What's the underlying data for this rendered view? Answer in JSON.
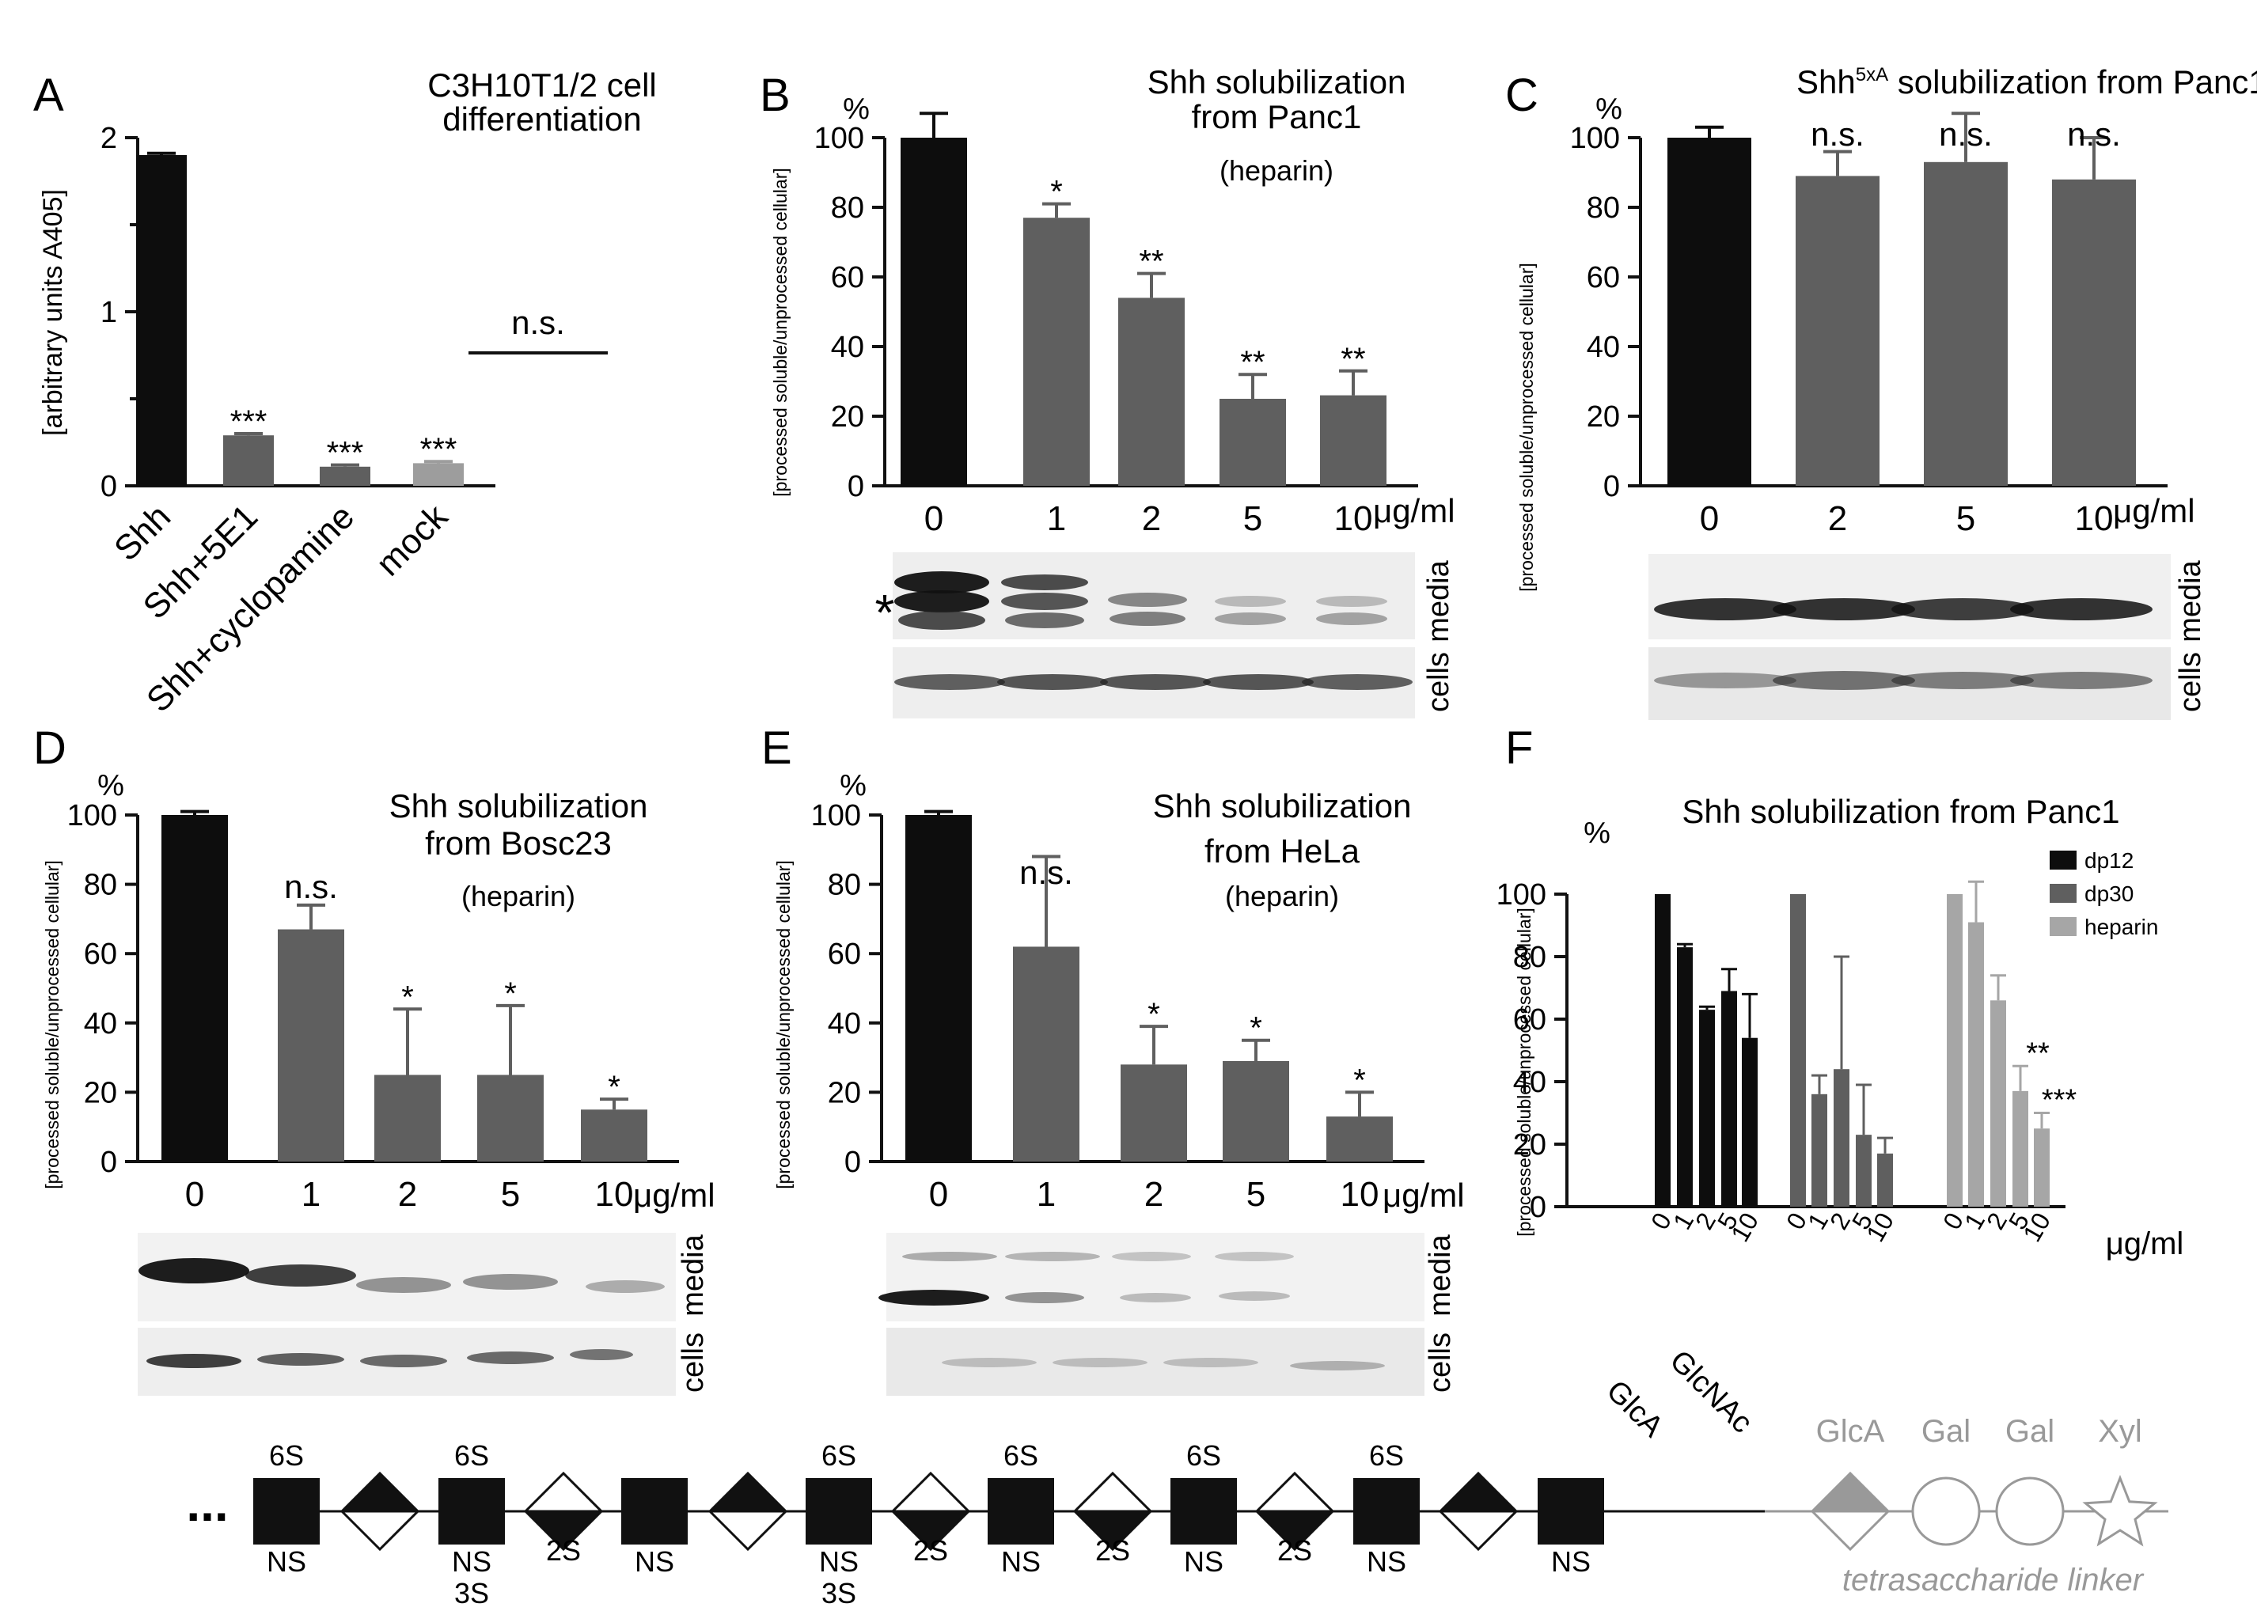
{
  "chart_data": [
    {
      "panel": "A",
      "type": "bar",
      "title_lines": [
        "C3H10T1/2 cell",
        "differentiation"
      ],
      "ylabel": "[arbitrary units A405]",
      "ylim": [
        0,
        2
      ],
      "yticks": [
        "0",
        "1",
        "2"
      ],
      "categories": [
        "Shh",
        "Shh+5E1",
        "Shh+cyclopamine",
        "mock"
      ],
      "values": [
        1.9,
        0.29,
        0.11,
        0.13
      ],
      "errors": [
        0.01,
        0.01,
        0.01,
        0.01
      ],
      "colors": [
        "#0d0d0d",
        "#5f5f5f",
        "#5f5f5f",
        "#9d9d9d"
      ],
      "sig": [
        "",
        "***",
        "***",
        "***"
      ],
      "bracket_label": "n.s."
    },
    {
      "panel": "B",
      "type": "bar",
      "title_lines": [
        "Shh solubilization",
        "from Panc1"
      ],
      "subtitle": "(heparin)",
      "unit": "%",
      "ylabel": "[processed soluble/unprocessed cellular]",
      "ylim": [
        0,
        100
      ],
      "yticks": [
        "0",
        "20",
        "40",
        "60",
        "80",
        "100"
      ],
      "categories": [
        "0",
        "1",
        "2",
        "5",
        "10"
      ],
      "x_unit": "μg/ml",
      "values": [
        100,
        77,
        54,
        25,
        26
      ],
      "errors": [
        7,
        4,
        7,
        7,
        7
      ],
      "colors": [
        "#0d0d0d",
        "#5f5f5f",
        "#5f5f5f",
        "#5f5f5f",
        "#5f5f5f"
      ],
      "sig": [
        "",
        "*",
        "**",
        "**",
        "**"
      ],
      "blot_labels": [
        "media",
        "cells"
      ],
      "blot_marker": "*"
    },
    {
      "panel": "C",
      "type": "bar",
      "title": "Shh",
      "title_sup": "5xA",
      "title_rest": " solubilization from Panc1",
      "unit": "%",
      "ylabel": "[processed soluble/unprocessed cellular]",
      "ylim": [
        0,
        100
      ],
      "yticks": [
        "0",
        "20",
        "40",
        "60",
        "80",
        "100"
      ],
      "categories": [
        "0",
        "2",
        "5",
        "10"
      ],
      "x_unit": "μg/ml",
      "values": [
        100,
        89,
        93,
        88
      ],
      "errors": [
        3,
        7,
        14,
        12
      ],
      "colors": [
        "#0d0d0d",
        "#5f5f5f",
        "#5f5f5f",
        "#5f5f5f"
      ],
      "sig": [
        "",
        "n.s.",
        "n.s.",
        "n.s."
      ],
      "blot_labels": [
        "media",
        "cells"
      ]
    },
    {
      "panel": "D",
      "type": "bar",
      "title_lines": [
        "Shh solubilization",
        "from Bosc23"
      ],
      "subtitle": "(heparin)",
      "unit": "%",
      "ylabel": "[processed soluble/unprocessed cellular]",
      "ylim": [
        0,
        100
      ],
      "yticks": [
        "0",
        "20",
        "40",
        "60",
        "80",
        "100"
      ],
      "categories": [
        "0",
        "1",
        "2",
        "5",
        "10"
      ],
      "x_unit": "μg/ml",
      "values": [
        100,
        67,
        25,
        25,
        15
      ],
      "errors": [
        1,
        7,
        19,
        20,
        3
      ],
      "colors": [
        "#0d0d0d",
        "#5f5f5f",
        "#5f5f5f",
        "#5f5f5f",
        "#5f5f5f"
      ],
      "sig": [
        "",
        "n.s.",
        "*",
        "*",
        "*"
      ],
      "blot_labels": [
        "media",
        "cells"
      ]
    },
    {
      "panel": "E",
      "type": "bar",
      "title_lines": [
        "Shh solubilization",
        "from HeLa"
      ],
      "subtitle": "(heparin)",
      "unit": "%",
      "ylabel": "[processed soluble/unprocessed cellular]",
      "ylim": [
        0,
        100
      ],
      "yticks": [
        "0",
        "20",
        "40",
        "60",
        "80",
        "100"
      ],
      "categories": [
        "0",
        "1",
        "2",
        "5",
        "10"
      ],
      "x_unit": "μg/ml",
      "values": [
        100,
        62,
        28,
        29,
        13
      ],
      "errors": [
        1,
        26,
        11,
        6,
        7
      ],
      "colors": [
        "#0d0d0d",
        "#5f5f5f",
        "#5f5f5f",
        "#5f5f5f",
        "#5f5f5f"
      ],
      "sig": [
        "",
        "n.s.",
        "*",
        "*",
        "*"
      ],
      "blot_labels": [
        "media",
        "cells"
      ]
    },
    {
      "panel": "F",
      "type": "bar",
      "title": "Shh solubilization from Panc1",
      "unit": "%",
      "ylabel": "[processed soluble/unprocessed cellular]",
      "ylim": [
        0,
        100
      ],
      "yticks": [
        "0",
        "20",
        "40",
        "60",
        "80",
        "100"
      ],
      "categories": [
        "0",
        "1",
        "2",
        "5",
        "10"
      ],
      "x_unit": "μg/ml",
      "series": [
        {
          "name": "dp12",
          "color": "#0d0d0d",
          "values": [
            100,
            83,
            63,
            69,
            54
          ],
          "errors": [
            0,
            1,
            1,
            7,
            14
          ],
          "sig": [
            "",
            "",
            "",
            "",
            ""
          ]
        },
        {
          "name": "dp30",
          "color": "#5f5f5f",
          "values": [
            100,
            36,
            44,
            23,
            17
          ],
          "errors": [
            0,
            6,
            36,
            16,
            5
          ],
          "sig": [
            "",
            "",
            "",
            "",
            ""
          ]
        },
        {
          "name": "heparin",
          "color": "#a6a6a6",
          "values": [
            100,
            91,
            66,
            37,
            25
          ],
          "errors": [
            0,
            13,
            8,
            8,
            5
          ],
          "sig": [
            "",
            "",
            "",
            "**",
            "***"
          ]
        }
      ]
    }
  ],
  "structure": {
    "ellipsis": "...",
    "mods_above": [
      "6S",
      "",
      "6S",
      "",
      "",
      "",
      "6S",
      "",
      "6S",
      "",
      "6S",
      "",
      "6S",
      "",
      ""
    ],
    "mods_below": [
      [
        "NS"
      ],
      [],
      [
        "NS",
        "3S"
      ],
      [
        "2S"
      ],
      [
        "NS"
      ],
      [],
      [
        "NS",
        "3S"
      ],
      [
        "2S"
      ],
      [
        "NS"
      ],
      [
        "2S"
      ],
      [
        "NS"
      ],
      [
        "2S"
      ],
      [
        "NS"
      ],
      [],
      [
        "NS"
      ]
    ],
    "glca_label": "GlcA",
    "glcnac_label": "GlcNAc",
    "linker_labels": [
      "GlcA",
      "Gal",
      "Gal",
      "Xyl"
    ],
    "linker_caption": "tetrasaccharide linker"
  }
}
